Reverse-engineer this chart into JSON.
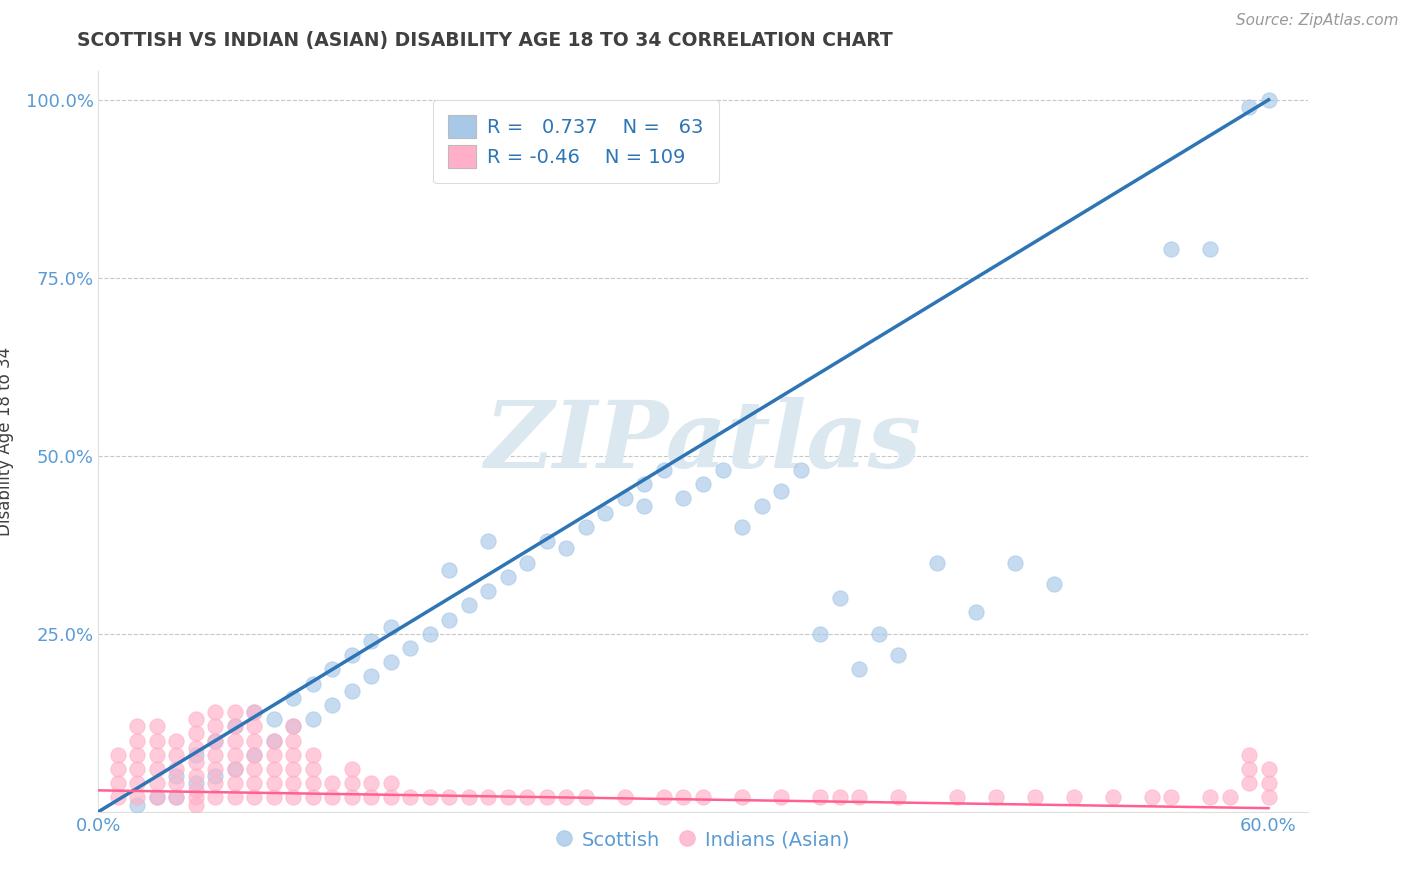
{
  "title": "SCOTTISH VS INDIAN (ASIAN) DISABILITY AGE 18 TO 34 CORRELATION CHART",
  "source": "Source: ZipAtlas.com",
  "ylabel": "Disability Age 18 to 34",
  "xlim": [
    0.0,
    0.62
  ],
  "ylim": [
    0.0,
    1.04
  ],
  "xticks": [
    0.0,
    0.1,
    0.2,
    0.3,
    0.4,
    0.5,
    0.6
  ],
  "xticklabels": [
    "0.0%",
    "",
    "",
    "",
    "",
    "",
    "60.0%"
  ],
  "yticks": [
    0.0,
    0.25,
    0.5,
    0.75,
    1.0
  ],
  "yticklabels": [
    "",
    "25.0%",
    "50.0%",
    "75.0%",
    "100.0%"
  ],
  "blue_R": 0.737,
  "blue_N": 63,
  "pink_R": -0.46,
  "pink_N": 109,
  "blue_color": "#a8c8e8",
  "pink_color": "#ffb0c8",
  "blue_line_color": "#2e75b6",
  "pink_line_color": "#ff6090",
  "title_color": "#404040",
  "axis_label_color": "#404040",
  "tick_color": "#5b9bd5",
  "grid_color": "#c8c8c8",
  "watermark_color": "#dce8f0",
  "legend_label_blue": "Scottish",
  "legend_label_pink": "Indians (Asian)",
  "blue_line_x0": 0.0,
  "blue_line_y0": 0.0,
  "blue_line_x1": 0.6,
  "blue_line_y1": 1.0,
  "pink_line_x0": 0.0,
  "pink_line_y0": 0.03,
  "pink_line_x1": 0.6,
  "pink_line_y1": 0.005,
  "blue_scatter_x": [
    0.02,
    0.03,
    0.04,
    0.04,
    0.05,
    0.05,
    0.06,
    0.06,
    0.07,
    0.07,
    0.08,
    0.08,
    0.09,
    0.09,
    0.1,
    0.1,
    0.11,
    0.11,
    0.12,
    0.12,
    0.13,
    0.13,
    0.14,
    0.14,
    0.15,
    0.15,
    0.16,
    0.17,
    0.18,
    0.18,
    0.19,
    0.2,
    0.2,
    0.21,
    0.22,
    0.23,
    0.24,
    0.25,
    0.26,
    0.27,
    0.28,
    0.28,
    0.29,
    0.3,
    0.31,
    0.32,
    0.33,
    0.34,
    0.35,
    0.36,
    0.37,
    0.38,
    0.39,
    0.4,
    0.41,
    0.43,
    0.45,
    0.47,
    0.49,
    0.55,
    0.57,
    0.59,
    0.6
  ],
  "blue_scatter_y": [
    0.01,
    0.02,
    0.02,
    0.05,
    0.04,
    0.08,
    0.05,
    0.1,
    0.06,
    0.12,
    0.08,
    0.14,
    0.1,
    0.13,
    0.12,
    0.16,
    0.13,
    0.18,
    0.15,
    0.2,
    0.17,
    0.22,
    0.19,
    0.24,
    0.21,
    0.26,
    0.23,
    0.25,
    0.27,
    0.34,
    0.29,
    0.31,
    0.38,
    0.33,
    0.35,
    0.38,
    0.37,
    0.4,
    0.42,
    0.44,
    0.43,
    0.46,
    0.48,
    0.44,
    0.46,
    0.48,
    0.4,
    0.43,
    0.45,
    0.48,
    0.25,
    0.3,
    0.2,
    0.25,
    0.22,
    0.35,
    0.28,
    0.35,
    0.32,
    0.79,
    0.79,
    0.99,
    1.0
  ],
  "pink_scatter_x": [
    0.01,
    0.01,
    0.01,
    0.01,
    0.02,
    0.02,
    0.02,
    0.02,
    0.02,
    0.02,
    0.03,
    0.03,
    0.03,
    0.03,
    0.03,
    0.03,
    0.04,
    0.04,
    0.04,
    0.04,
    0.04,
    0.05,
    0.05,
    0.05,
    0.05,
    0.05,
    0.05,
    0.05,
    0.05,
    0.06,
    0.06,
    0.06,
    0.06,
    0.06,
    0.06,
    0.06,
    0.07,
    0.07,
    0.07,
    0.07,
    0.07,
    0.07,
    0.07,
    0.08,
    0.08,
    0.08,
    0.08,
    0.08,
    0.08,
    0.08,
    0.09,
    0.09,
    0.09,
    0.09,
    0.09,
    0.1,
    0.1,
    0.1,
    0.1,
    0.1,
    0.1,
    0.11,
    0.11,
    0.11,
    0.11,
    0.12,
    0.12,
    0.13,
    0.13,
    0.13,
    0.14,
    0.14,
    0.15,
    0.15,
    0.16,
    0.17,
    0.18,
    0.19,
    0.2,
    0.21,
    0.22,
    0.23,
    0.24,
    0.25,
    0.27,
    0.29,
    0.3,
    0.31,
    0.33,
    0.35,
    0.37,
    0.38,
    0.39,
    0.41,
    0.44,
    0.46,
    0.48,
    0.5,
    0.52,
    0.54,
    0.55,
    0.57,
    0.58,
    0.59,
    0.59,
    0.59,
    0.6,
    0.6,
    0.6
  ],
  "pink_scatter_y": [
    0.02,
    0.04,
    0.06,
    0.08,
    0.02,
    0.04,
    0.06,
    0.08,
    0.1,
    0.12,
    0.02,
    0.04,
    0.06,
    0.08,
    0.1,
    0.12,
    0.02,
    0.04,
    0.06,
    0.08,
    0.1,
    0.01,
    0.02,
    0.03,
    0.05,
    0.07,
    0.09,
    0.11,
    0.13,
    0.02,
    0.04,
    0.06,
    0.08,
    0.1,
    0.12,
    0.14,
    0.02,
    0.04,
    0.06,
    0.08,
    0.1,
    0.12,
    0.14,
    0.02,
    0.04,
    0.06,
    0.08,
    0.1,
    0.12,
    0.14,
    0.02,
    0.04,
    0.06,
    0.08,
    0.1,
    0.02,
    0.04,
    0.06,
    0.08,
    0.1,
    0.12,
    0.02,
    0.04,
    0.06,
    0.08,
    0.02,
    0.04,
    0.02,
    0.04,
    0.06,
    0.02,
    0.04,
    0.02,
    0.04,
    0.02,
    0.02,
    0.02,
    0.02,
    0.02,
    0.02,
    0.02,
    0.02,
    0.02,
    0.02,
    0.02,
    0.02,
    0.02,
    0.02,
    0.02,
    0.02,
    0.02,
    0.02,
    0.02,
    0.02,
    0.02,
    0.02,
    0.02,
    0.02,
    0.02,
    0.02,
    0.02,
    0.02,
    0.02,
    0.04,
    0.06,
    0.08,
    0.02,
    0.04,
    0.06
  ]
}
